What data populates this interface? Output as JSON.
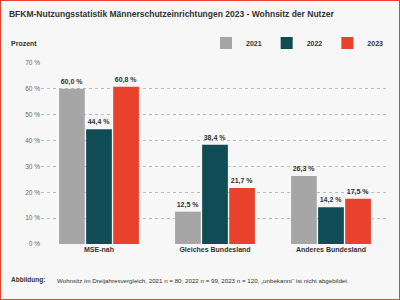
{
  "chart_data": {
    "type": "bar",
    "title": "BFKM-Nutzungsstatistik Männerschutzeinrichtungen 2023 - Wohnsitz der Nutzer",
    "y_label": "Prozent",
    "categories": [
      "MSE-nah",
      "Gleiches Bundesland",
      "Anderes Bundesland"
    ],
    "series": [
      {
        "name": "2021",
        "color": "#a6a6a6",
        "values": [
          60.0,
          12.5,
          26.3
        ],
        "value_labels": [
          "60,0 %",
          "12,5 %",
          "26,3 %"
        ]
      },
      {
        "name": "2022",
        "color": "#0f4c55",
        "values": [
          44.4,
          38.4,
          14.2
        ],
        "value_labels": [
          "44,4 %",
          "38,4 %",
          "14,2 %"
        ]
      },
      {
        "name": "2023",
        "color": "#e8412c",
        "values": [
          60.8,
          21.7,
          17.5
        ],
        "value_labels": [
          "60,8 %",
          "21,7 %",
          "17,5 %"
        ]
      }
    ],
    "ylim": [
      0,
      70
    ],
    "yticks": [
      {
        "value": 0,
        "label": "0 %"
      },
      {
        "value": 10,
        "label": "10 %"
      },
      {
        "value": 20,
        "label": "20 %"
      },
      {
        "value": 30,
        "label": "30 %"
      },
      {
        "value": 40,
        "label": "40 %"
      },
      {
        "value": 50,
        "label": "50 %"
      },
      {
        "value": 60,
        "label": "60 %"
      },
      {
        "value": 70,
        "label": "70 %"
      }
    ],
    "grid": true,
    "data_labels": true,
    "legend": "top-right",
    "caption": {
      "label": "Abbildung:",
      "text": "Wohnsitz im Dreijahresvergleich, 2021 n = 80; 2022 n = 99, 2023 n = 120, „unbekannt“ ist nicht abgebildet"
    }
  }
}
